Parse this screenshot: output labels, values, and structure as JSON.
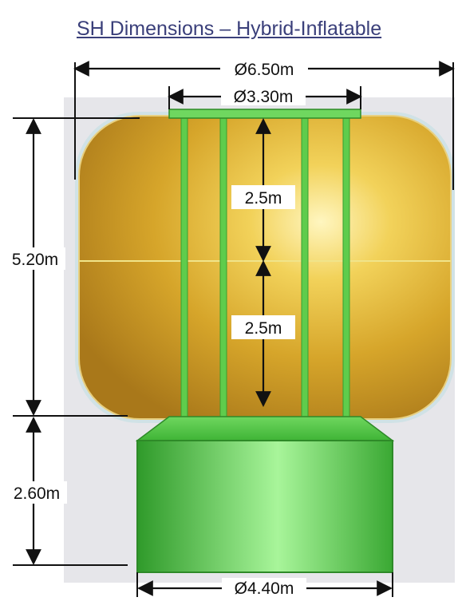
{
  "title": "SH Dimensions – Hybrid-Inflatable",
  "dimensions": {
    "outer_diameter": "Ø6.50m",
    "top_diameter": "Ø3.30m",
    "upper_height": "2.5m",
    "lower_height": "2.5m",
    "habitat_height": "5.20m",
    "base_height": "2.60m",
    "base_diameter": "Ø4.40m"
  },
  "colors": {
    "inflatable_fill": "#d8a62a",
    "inflatable_highlight": "#fff2b0",
    "core_green": "#4fc63f",
    "core_green_light": "#9af08a",
    "background_panel": "#e6e6ea"
  }
}
